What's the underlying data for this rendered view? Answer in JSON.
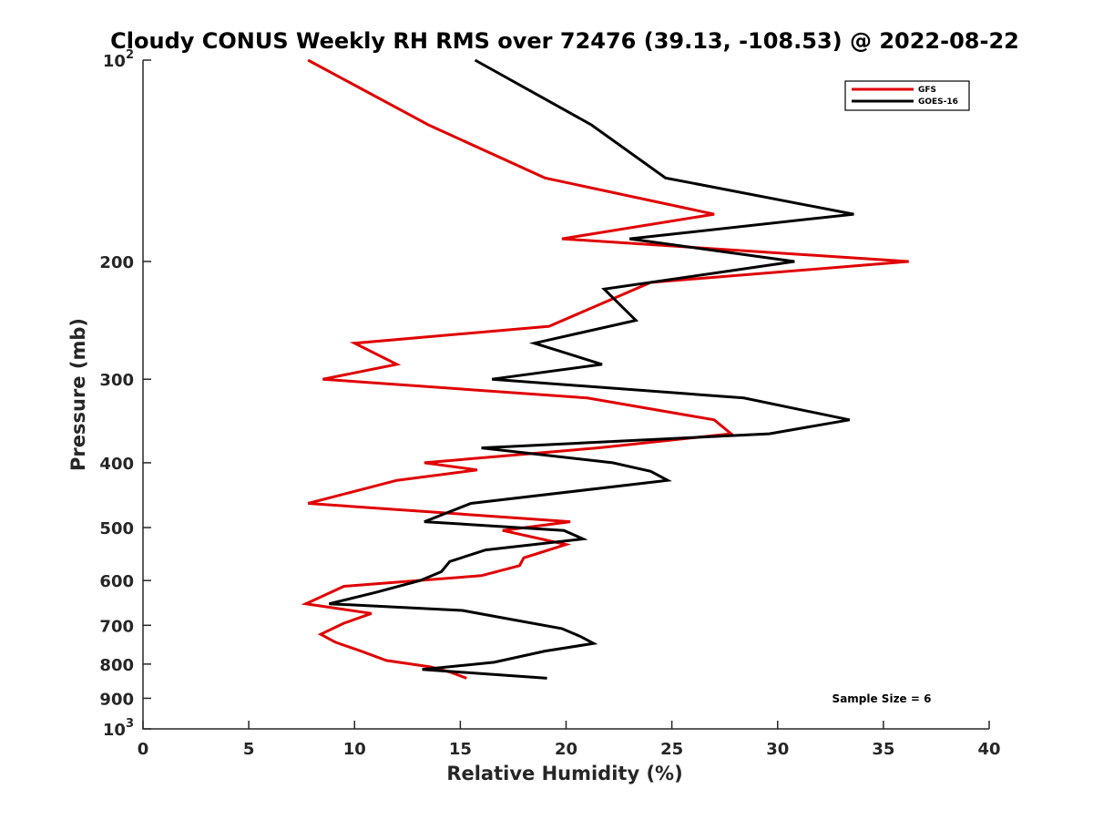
{
  "chart_data": {
    "type": "line",
    "title": "Cloudy CONUS Weekly RH RMS over 72476 (39.13, -108.53) @ 2022-08-22",
    "xlabel": "Relative Humidity (%)",
    "ylabel": "Pressure (mb)",
    "xlim": [
      0,
      40
    ],
    "ylim": [
      100,
      1000
    ],
    "y_scale": "log",
    "y_reversed": true,
    "x_ticks": [
      "0",
      "5",
      "10",
      "15",
      "20",
      "25",
      "30",
      "35",
      "40"
    ],
    "y_ticks": [
      {
        "value": 100,
        "base": "10",
        "exp": "2"
      },
      {
        "value": 200,
        "label": "200"
      },
      {
        "value": 300,
        "label": "300"
      },
      {
        "value": 400,
        "label": "400"
      },
      {
        "value": 500,
        "label": "500"
      },
      {
        "value": 600,
        "label": "600"
      },
      {
        "value": 700,
        "label": "700"
      },
      {
        "value": 800,
        "label": "800"
      },
      {
        "value": 900,
        "label": "900"
      },
      {
        "value": 1000,
        "base": "10",
        "exp": "3"
      }
    ],
    "legend_position": "top-right",
    "annotation": "Sample Size = 6",
    "series": [
      {
        "name": "GFS",
        "color": "#e00000",
        "pressure": [
          100,
          125,
          150,
          170,
          185,
          200,
          215,
          250,
          265,
          285,
          300,
          320,
          345,
          362,
          380,
          400,
          410,
          425,
          460,
          490,
          505,
          530,
          555,
          570,
          590,
          612,
          650,
          672,
          695,
          722,
          742,
          765,
          790,
          808,
          822,
          840
        ],
        "values": [
          7.8,
          13.5,
          19.0,
          27.0,
          19.8,
          36.2,
          24.0,
          19.2,
          10.0,
          12.0,
          8.5,
          21.0,
          27.0,
          27.8,
          21.5,
          13.3,
          15.8,
          12.0,
          7.8,
          20.2,
          17.0,
          20.0,
          18.0,
          17.8,
          16.0,
          9.5,
          7.7,
          10.8,
          9.5,
          8.4,
          9.1,
          10.3,
          11.5,
          13.6,
          14.5,
          15.3
        ]
      },
      {
        "name": "GOES-16",
        "color": "#000000",
        "pressure": [
          100,
          125,
          150,
          170,
          185,
          200,
          220,
          245,
          265,
          285,
          300,
          320,
          345,
          362,
          380,
          400,
          412,
          425,
          460,
          490,
          505,
          520,
          540,
          562,
          582,
          600,
          625,
          650,
          665,
          685,
          708,
          728,
          745,
          765,
          795,
          815,
          840
        ],
        "values": [
          15.7,
          21.2,
          24.7,
          33.6,
          23.0,
          30.8,
          21.8,
          23.3,
          18.5,
          21.7,
          16.5,
          28.4,
          33.4,
          29.6,
          16.0,
          22.2,
          24.0,
          24.8,
          15.5,
          13.3,
          19.9,
          20.8,
          16.2,
          14.5,
          14.1,
          13.1,
          11.0,
          8.8,
          15.1,
          17.3,
          19.8,
          20.7,
          21.3,
          19.0,
          16.6,
          13.2,
          19.1
        ]
      }
    ]
  }
}
